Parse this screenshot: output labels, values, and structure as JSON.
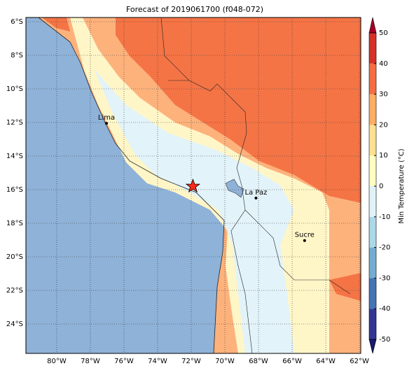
{
  "title": "Forecast of 2019061700 (f048-072)",
  "map": {
    "lonlim": [
      -81.83,
      -61.92
    ],
    "latlim": [
      -25.75,
      -5.75
    ],
    "lon_ticks": [
      {
        "value": -80,
        "label": "80°W"
      },
      {
        "value": -78,
        "label": "78°W"
      },
      {
        "value": -76,
        "label": "76°W"
      },
      {
        "value": -74,
        "label": "74°W"
      },
      {
        "value": -72,
        "label": "72°W"
      },
      {
        "value": -70,
        "label": "70°W"
      },
      {
        "value": -68,
        "label": "68°W"
      },
      {
        "value": -66,
        "label": "66°W"
      },
      {
        "value": -64,
        "label": "64°W"
      },
      {
        "value": -62,
        "label": "62°W"
      }
    ],
    "lat_ticks": [
      {
        "value": -6,
        "label": "6°S"
      },
      {
        "value": -8,
        "label": "8°S"
      },
      {
        "value": -10,
        "label": "10°S"
      },
      {
        "value": -12,
        "label": "12°S"
      },
      {
        "value": -14,
        "label": "14°S"
      },
      {
        "value": -16,
        "label": "16°S"
      },
      {
        "value": -18,
        "label": "18°S"
      },
      {
        "value": -20,
        "label": "20°S"
      },
      {
        "value": -22,
        "label": "22°S"
      },
      {
        "value": -24,
        "label": "24°S"
      }
    ],
    "cities": [
      {
        "name": "Lima",
        "lon": -77.04,
        "lat": -12.05
      },
      {
        "name": "La Paz",
        "lon": -68.15,
        "lat": -16.5
      },
      {
        "name": "Sucre",
        "lon": -65.26,
        "lat": -19.03
      }
    ],
    "star": {
      "lon": -71.9,
      "lat": -15.8,
      "color": "#ff2a1a"
    }
  },
  "colorbar": {
    "label": "Min Temperature (°C)",
    "lim": [
      -50,
      50
    ],
    "ticks": [
      -50,
      -40,
      -30,
      -20,
      -10,
      0,
      10,
      20,
      30,
      40,
      50
    ],
    "colors": [
      "#313695",
      "#4575b4",
      "#74add1",
      "#abd9e9",
      "#e0f3f8",
      "#ffffbf",
      "#fee090",
      "#fdae61",
      "#f46d43",
      "#d73027"
    ],
    "under_color": "#1a1a6e",
    "over_color": "#a50026"
  }
}
